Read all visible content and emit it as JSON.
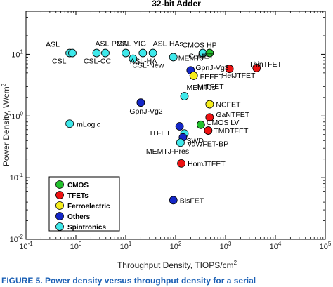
{
  "caption": "FIGURE 5. Power density versus throughput density for a serial",
  "chart_data": {
    "type": "scatter",
    "title": "32-bit Adder",
    "xlabel": "Throughput Density, TIOPS/cm",
    "xlabel_sup": "2",
    "ylabel": "Power Density, W/cm",
    "ylabel_sup": "2",
    "x_scale": "log",
    "y_scale": "log",
    "xlim": [
      0.1,
      100000
    ],
    "ylim": [
      0.01,
      50
    ],
    "x_ticks": [
      0.1,
      1,
      10,
      100,
      1000,
      10000,
      100000
    ],
    "x_tick_labels": [
      [
        "10",
        "-1"
      ],
      [
        "10",
        "0"
      ],
      [
        "10",
        "1"
      ],
      [
        "10",
        "2"
      ],
      [
        "10",
        "3"
      ],
      [
        "10",
        "4"
      ],
      [
        "10",
        "5"
      ]
    ],
    "y_ticks": [
      0.01,
      0.1,
      1,
      10
    ],
    "y_tick_labels": [
      [
        "10",
        "-2"
      ],
      [
        "10",
        "-1"
      ],
      [
        "10",
        "0"
      ],
      [
        "10",
        "1"
      ]
    ],
    "grid": false,
    "legend_position": "bottom-left",
    "categories": [
      {
        "name": "CMOS",
        "color": "#22c02c"
      },
      {
        "name": "TFETs",
        "color": "#ee1111"
      },
      {
        "name": "Ferroelectric",
        "color": "#f6ee1c"
      },
      {
        "name": "Others",
        "color": "#1427c8"
      },
      {
        "name": "Spintronics",
        "color": "#3ee8ea"
      }
    ],
    "points": [
      {
        "label": "ASL",
        "x": 0.75,
        "y": 10.5,
        "category": "Spintronics",
        "lx": -34,
        "ly": -9
      },
      {
        "label": "CSL",
        "x": 0.85,
        "y": 10.5,
        "category": "Spintronics",
        "lx": -29,
        "ly": 15
      },
      {
        "label": "ASL-PMA",
        "x": 2.6,
        "y": 10.5,
        "category": "Spintronics",
        "lx": -2,
        "ly": -10
      },
      {
        "label": "CSL-CC",
        "x": 3.9,
        "y": 10.5,
        "category": "Spintronics",
        "lx": -31,
        "ly": 15
      },
      {
        "label": "CSL-YIG",
        "x": 10,
        "y": 10.5,
        "category": "Spintronics",
        "lx": -13,
        "ly": -10
      },
      {
        "label": "ASL-HAs",
        "x": 35,
        "y": 10.5,
        "category": "Spintronics",
        "lx": 0,
        "ly": -10
      },
      {
        "label": "ASL-HA",
        "x": 22,
        "y": 10.5,
        "category": "Spintronics",
        "lx": -18,
        "ly": 15
      },
      {
        "label": "CSL-New",
        "x": 14,
        "y": 8.5,
        "category": "Spintronics",
        "lx": -1,
        "ly": 13
      },
      {
        "label": "MEMTJ",
        "x": 90,
        "y": 9,
        "category": "Spintronics",
        "lx": 7,
        "ly": 5
      },
      {
        "label": "CMOS HP",
        "x": 350,
        "y": 10.5,
        "category": "Spintronics",
        "lx": -29,
        "ly": -8
      },
      {
        "label": "CoMET",
        "x": 480,
        "y": 10.5,
        "category": "CMOS",
        "lx": -30,
        "ly": 8
      },
      {
        "label": "GpnJ-Vg3",
        "x": 200,
        "y": 5.5,
        "category": "Others",
        "lx": 7,
        "ly": 0
      },
      {
        "label": "FEFET",
        "x": 230,
        "y": 4.5,
        "category": "Ferroelectric",
        "lx": 9,
        "ly": 5
      },
      {
        "label": "MITFET",
        "x": 230,
        "y": 4.5,
        "category": "Ferroelectric",
        "lx": 5,
        "ly": 19
      },
      {
        "label": "ThinTFET",
        "x": 4200,
        "y": 6,
        "category": "TFETs",
        "lx": -11,
        "ly": -2
      },
      {
        "label": "HetJTFET",
        "x": 1200,
        "y": 5.8,
        "category": "TFETs",
        "lx": -11,
        "ly": 13
      },
      {
        "label": "MEMTJs",
        "x": 150,
        "y": 2.1,
        "category": "Spintronics",
        "lx": 3,
        "ly": -9
      },
      {
        "label": "NCFET",
        "x": 480,
        "y": 1.55,
        "category": "Ferroelectric",
        "lx": 9,
        "ly": 4
      },
      {
        "label": "GpnJ-Vg2",
        "x": 20,
        "y": 1.65,
        "category": "Others",
        "lx": -16,
        "ly": 16
      },
      {
        "label": "mLogic",
        "x": 0.75,
        "y": 0.75,
        "category": "Spintronics",
        "lx": 10,
        "ly": 4
      },
      {
        "label": "GaNTFET",
        "x": 480,
        "y": 0.95,
        "category": "TFETs",
        "lx": 9,
        "ly": 0
      },
      {
        "label": "CMOS LV",
        "x": 320,
        "y": 0.72,
        "category": "CMOS",
        "lx": 8,
        "ly": 0
      },
      {
        "label": "ITFET",
        "x": 120,
        "y": 0.68,
        "category": "Others",
        "lx": -42,
        "ly": 13
      },
      {
        "label": "TMDTFET",
        "x": 450,
        "y": 0.58,
        "category": "TFETs",
        "lx": 8,
        "ly": 4
      },
      {
        "label": "SWD",
        "x": 150,
        "y": 0.52,
        "category": "Spintronics",
        "lx": 3,
        "ly": 14
      },
      {
        "label": "vdWFET-BP",
        "x": 140,
        "y": 0.45,
        "category": "Others",
        "lx": 7,
        "ly": 13
      },
      {
        "label": "MEMTJ-Pres",
        "x": 125,
        "y": 0.37,
        "category": "Spintronics",
        "lx": -49,
        "ly": 16
      },
      {
        "label": "HomJTFET",
        "x": 130,
        "y": 0.17,
        "category": "TFETs",
        "lx": 9,
        "ly": 4
      },
      {
        "label": "BisFET",
        "x": 90,
        "y": 0.043,
        "category": "Others",
        "lx": 9,
        "ly": 4
      }
    ]
  }
}
